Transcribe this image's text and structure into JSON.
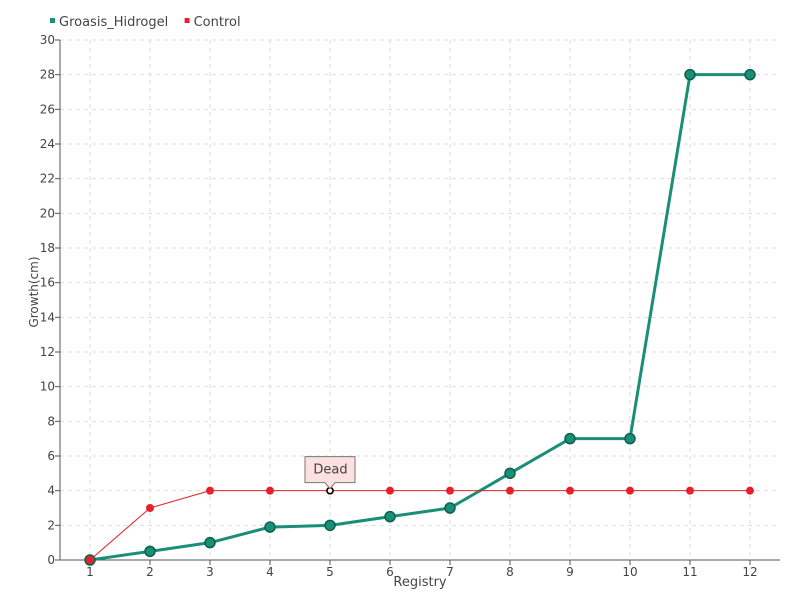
{
  "chart_data": {
    "type": "line",
    "xlabel": "Registry",
    "ylabel": "Growth(cm)",
    "categories": [
      "1",
      "2",
      "3",
      "4",
      "5",
      "6",
      "7",
      "8",
      "9",
      "10",
      "11",
      "12"
    ],
    "ylim": [
      0,
      30
    ],
    "y_ticks": [
      0,
      2,
      4,
      6,
      8,
      10,
      12,
      14,
      16,
      18,
      20,
      22,
      24,
      26,
      28,
      30
    ],
    "grid": true,
    "legend_position": "top-left",
    "series": [
      {
        "name": "Groasis_Hidrogel",
        "color": "#1a8f77",
        "values": [
          0,
          0.5,
          1,
          1.9,
          2,
          2.5,
          3,
          5,
          7,
          7,
          28,
          28
        ]
      },
      {
        "name": "Control",
        "color": "#e8202a",
        "values": [
          0,
          3,
          4,
          4,
          4,
          4,
          4,
          4,
          4,
          4,
          4,
          4
        ]
      }
    ],
    "annotations": [
      {
        "text": "Dead",
        "series": "Control",
        "category": "5",
        "value": 4
      }
    ]
  }
}
